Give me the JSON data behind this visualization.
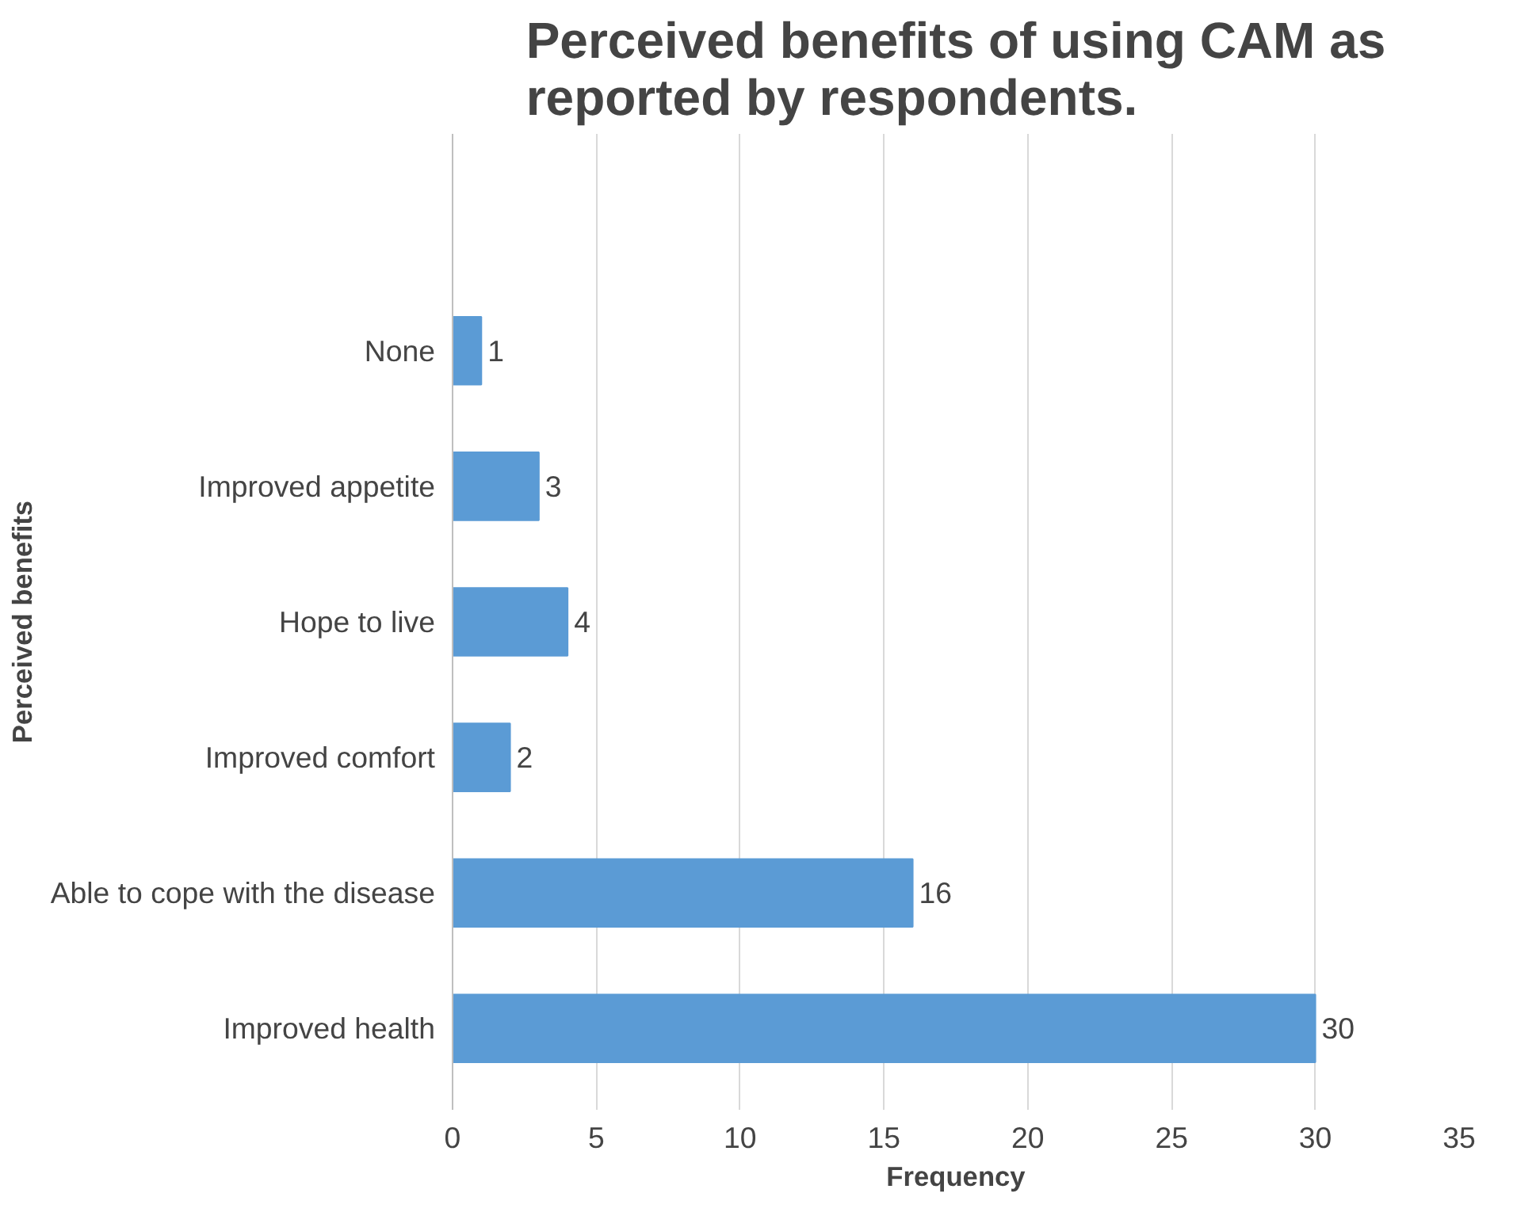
{
  "chart_data": {
    "type": "bar",
    "orientation": "horizontal",
    "title": "Perceived benefits of using CAM as reported by respondents.",
    "xlabel": "Frequency",
    "ylabel": "Perceived benefits",
    "categories": [
      "None",
      "Improved appetite",
      "Hope to live",
      "Improved comfort",
      "Able to cope with the disease",
      "Improved health"
    ],
    "values": [
      1,
      3,
      4,
      2,
      16,
      30
    ],
    "color": "#5b9bd5",
    "xlim": [
      0,
      35
    ],
    "xticks": [
      0,
      5,
      10,
      15,
      20,
      25,
      30,
      35
    ],
    "grid": "x",
    "data_labels": true
  }
}
